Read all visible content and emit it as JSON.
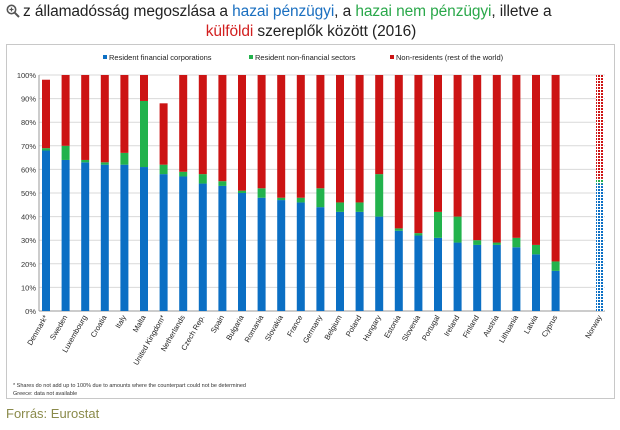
{
  "title": {
    "lead": "z államadósság megoszlása a ",
    "hazai_penzugyi": "hazai pénzügyi",
    "mid1": ", a ",
    "hazai_nem_penzugyi": "hazai nem pénzügyi",
    "mid2": ", illetve a",
    "kulfoldi": "külföldi",
    "tail": " szereplők között (2016)"
  },
  "colors": {
    "resident_financial": "#0b6fc4",
    "resident_nonfinancial": "#22b24c",
    "non_residents": "#cc1414",
    "title_blue": "#1a6fc0",
    "title_green": "#2aa84a",
    "title_red": "#d21f1f"
  },
  "source": "Forrás: Eurostat",
  "chart_data": {
    "type": "bar",
    "stacked": true,
    "legend_position": "top",
    "grid": true,
    "ylim": [
      0,
      100
    ],
    "y_ticks": [
      "0%",
      "10%",
      "20%",
      "30%",
      "40%",
      "50%",
      "60%",
      "70%",
      "80%",
      "90%",
      "100%"
    ],
    "categories": [
      "Denmark*",
      "Sweden",
      "Luxembourg",
      "Croatia",
      "Italy",
      "Malta",
      "United Kingdom*",
      "Netherlands",
      "Czech Rep.",
      "Spain",
      "Bulgaria",
      "Romania",
      "Slovakia",
      "France",
      "Germany",
      "Belgium",
      "Poland",
      "Hungary",
      "Estonia",
      "Slovenia",
      "Portugal",
      "Ireland",
      "Finland",
      "Austria",
      "Lithuania",
      "Latvia",
      "Cyprus",
      "Norway"
    ],
    "gap_before": "Norway",
    "hatched": "Norway",
    "series": [
      {
        "name": "Resident financial corporations",
        "values": [
          68,
          64,
          63,
          62,
          62,
          61,
          58,
          57,
          54,
          53,
          50,
          48,
          47,
          46,
          44,
          42,
          42,
          40,
          34,
          32,
          31,
          29,
          28,
          28,
          27,
          24,
          17,
          54
        ]
      },
      {
        "name": "Resident non-financial sectors",
        "values": [
          1,
          6,
          1,
          1,
          5,
          28,
          4,
          2,
          4,
          2,
          1,
          4,
          1,
          2,
          8,
          4,
          4,
          18,
          1,
          1,
          11,
          11,
          2,
          1,
          4,
          4,
          4,
          2
        ]
      },
      {
        "name": "Non-residents (rest of the world)",
        "values": [
          29,
          30,
          36,
          37,
          33,
          11,
          26,
          41,
          42,
          45,
          49,
          48,
          52,
          52,
          48,
          54,
          54,
          42,
          65,
          67,
          58,
          60,
          70,
          71,
          69,
          72,
          79,
          44
        ]
      }
    ],
    "footnotes": [
      "* Shares do not add up to 100% due to amounts where the counterpart could not be determined",
      "Greece: data not available"
    ]
  }
}
